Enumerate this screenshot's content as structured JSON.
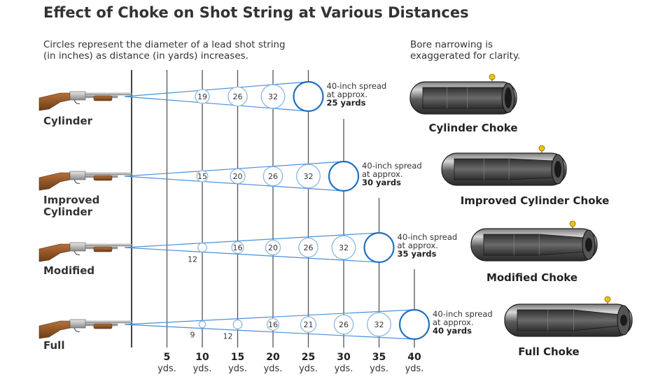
{
  "title": "Effect of Choke on Shot String at Various Distances",
  "note_left": [
    "Circles represent the diameter of a lead shot string",
    "(in inches) as distance (in yards) increases."
  ],
  "note_right": [
    "Bore narrowing is",
    "exaggerated for clarity."
  ],
  "distances": [
    {
      "value": "5",
      "unit": "yds."
    },
    {
      "value": "10",
      "unit": "yds."
    },
    {
      "value": "15",
      "unit": "yds."
    },
    {
      "value": "20",
      "unit": "yds."
    },
    {
      "value": "25",
      "unit": "yds."
    },
    {
      "value": "30",
      "unit": "yds."
    },
    {
      "value": "35",
      "unit": "yds."
    },
    {
      "value": "40",
      "unit": "yds."
    }
  ],
  "rows": [
    {
      "gun_label": [
        "Cylinder"
      ],
      "choke_name": "Cylinder Choke",
      "spread_note": [
        "40-inch spread",
        "at approx."
      ],
      "spread_distance": "25 yards",
      "range_yards": 25,
      "circles": [
        {
          "yards": 10,
          "inches": 19
        },
        {
          "yards": 15,
          "inches": 26
        },
        {
          "yards": 20,
          "inches": 32
        },
        {
          "yards": 25,
          "inches": 40
        }
      ],
      "labels": [
        "19",
        "26",
        "32"
      ]
    },
    {
      "gun_label": [
        "Improved",
        "Cylinder"
      ],
      "choke_name": "Improved Cylinder Choke",
      "spread_note": [
        "40-inch spread",
        "at approx."
      ],
      "spread_distance": "30 yards",
      "range_yards": 30,
      "circles": [
        {
          "yards": 10,
          "inches": 15
        },
        {
          "yards": 15,
          "inches": 20
        },
        {
          "yards": 20,
          "inches": 26
        },
        {
          "yards": 25,
          "inches": 32
        },
        {
          "yards": 30,
          "inches": 40
        }
      ],
      "labels": [
        "15",
        "20",
        "26",
        "32"
      ]
    },
    {
      "gun_label": [
        "Modified"
      ],
      "choke_name": "Modified Choke",
      "spread_note": [
        "40-inch spread",
        "at approx."
      ],
      "spread_distance": "35 yards",
      "range_yards": 35,
      "circles": [
        {
          "yards": 10,
          "inches": 12
        },
        {
          "yards": 15,
          "inches": 16
        },
        {
          "yards": 20,
          "inches": 20
        },
        {
          "yards": 25,
          "inches": 26
        },
        {
          "yards": 30,
          "inches": 32
        },
        {
          "yards": 35,
          "inches": 40
        }
      ],
      "labels": [
        "12",
        "16",
        "20",
        "26",
        "32"
      ]
    },
    {
      "gun_label": [
        "Full"
      ],
      "choke_name": "Full Choke",
      "spread_note": [
        "40-inch spread",
        "at approx."
      ],
      "spread_distance": "40 yards",
      "range_yards": 40,
      "circles": [
        {
          "yards": 10,
          "inches": 9
        },
        {
          "yards": 15,
          "inches": 12
        },
        {
          "yards": 20,
          "inches": 16
        },
        {
          "yards": 25,
          "inches": 21
        },
        {
          "yards": 30,
          "inches": 26
        },
        {
          "yards": 35,
          "inches": 32
        },
        {
          "yards": 40,
          "inches": 40
        }
      ],
      "labels": [
        "9",
        "12",
        "16",
        "21",
        "26",
        "32"
      ]
    }
  ],
  "colors": {
    "spread_line": "#4a90d9",
    "spread_circle": "#1f6fc2",
    "inner_circle": "#8fb8e0",
    "grid_line": "#555555",
    "barrel_dark": "#3a3a3a",
    "bead": "#f2c200"
  }
}
